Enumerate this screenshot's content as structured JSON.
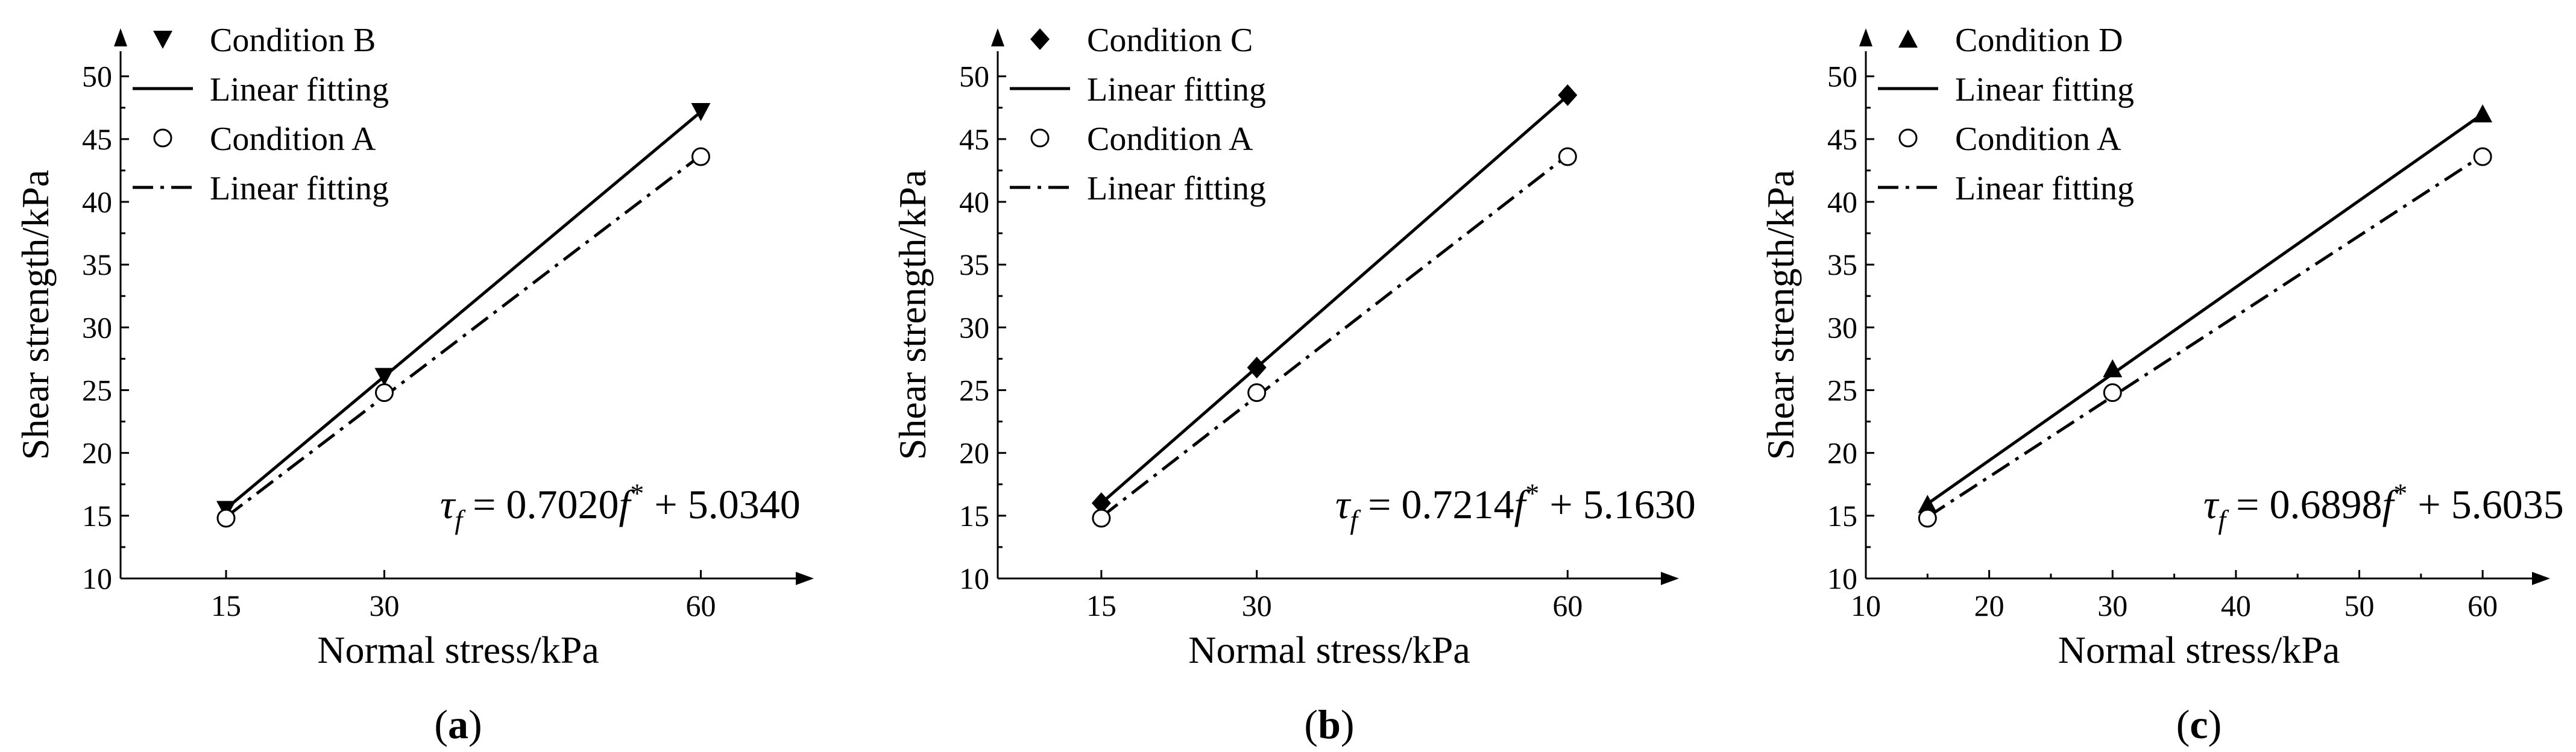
{
  "chart_data": [
    {
      "type": "scatter",
      "panel_label": "a",
      "xlabel": "Normal stress/kPa",
      "ylabel": "Shear strength/kPa",
      "xlim": [
        5,
        69
      ],
      "ylim": [
        10,
        52
      ],
      "xticks": [
        15,
        30,
        60
      ],
      "yticks": [
        10,
        15,
        20,
        25,
        30,
        35,
        40,
        45,
        50
      ],
      "equation": "τf = 0.7020f* + 5.0340",
      "series": [
        {
          "name": "Condition B",
          "marker": "triangle-down",
          "filled": true,
          "x": [
            15,
            30,
            60
          ],
          "y": [
            15.5,
            26.1,
            47.2
          ]
        },
        {
          "name": "Linear fitting",
          "line": "solid",
          "x": [
            15,
            60
          ],
          "y": [
            15.56,
            47.17
          ]
        },
        {
          "name": "Condition A",
          "marker": "circle",
          "filled": false,
          "x": [
            15,
            30,
            60
          ],
          "y": [
            14.8,
            24.8,
            43.6
          ]
        },
        {
          "name": "Linear fitting",
          "line": "dashdot",
          "x": [
            15,
            60
          ],
          "y": [
            14.9,
            43.7
          ]
        }
      ]
    },
    {
      "type": "scatter",
      "panel_label": "b",
      "xlabel": "Normal stress/kPa",
      "ylabel": "Shear strength/kPa",
      "xlim": [
        5,
        69
      ],
      "ylim": [
        10,
        52
      ],
      "xticks": [
        15,
        30,
        60
      ],
      "yticks": [
        10,
        15,
        20,
        25,
        30,
        35,
        40,
        45,
        50
      ],
      "equation": "τf = 0.7214f* + 5.1630",
      "series": [
        {
          "name": "Condition C",
          "marker": "diamond",
          "filled": true,
          "x": [
            15,
            30,
            60
          ],
          "y": [
            16.0,
            26.8,
            48.5
          ]
        },
        {
          "name": "Linear fitting",
          "line": "solid",
          "x": [
            15,
            60
          ],
          "y": [
            16.0,
            48.45
          ]
        },
        {
          "name": "Condition A",
          "marker": "circle",
          "filled": false,
          "x": [
            15,
            30,
            60
          ],
          "y": [
            14.8,
            24.8,
            43.6
          ]
        },
        {
          "name": "Linear fitting",
          "line": "dashdot",
          "x": [
            15,
            60
          ],
          "y": [
            14.9,
            43.7
          ]
        }
      ]
    },
    {
      "type": "scatter",
      "panel_label": "c",
      "xlabel": "Normal stress/kPa",
      "ylabel": "Shear strength/kPa",
      "xlim": [
        10,
        64
      ],
      "ylim": [
        10,
        52
      ],
      "xticks": [
        10,
        20,
        30,
        40,
        50,
        60
      ],
      "yticks": [
        10,
        15,
        20,
        25,
        30,
        35,
        40,
        45,
        50
      ],
      "equation": "τf = 0.6898f* + 5.6035",
      "series": [
        {
          "name": "Condition D",
          "marker": "triangle-up",
          "filled": true,
          "x": [
            15,
            30,
            60
          ],
          "y": [
            15.9,
            26.7,
            47.0
          ]
        },
        {
          "name": "Linear fitting",
          "line": "solid",
          "x": [
            15,
            60
          ],
          "y": [
            15.95,
            47.0
          ]
        },
        {
          "name": "Condition A",
          "marker": "circle",
          "filled": false,
          "x": [
            15,
            30,
            60
          ],
          "y": [
            14.8,
            24.8,
            43.6
          ]
        },
        {
          "name": "Linear fitting",
          "line": "dashdot",
          "x": [
            15,
            60
          ],
          "y": [
            14.9,
            43.7
          ]
        }
      ]
    }
  ]
}
